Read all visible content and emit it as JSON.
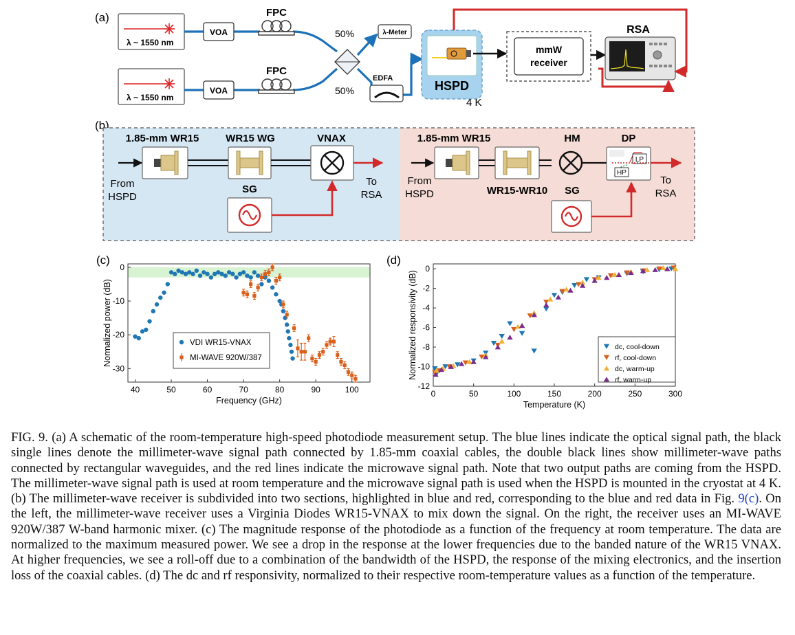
{
  "panel_a": {
    "label": "(a)",
    "laser_label": "λ ~ 1550 nm",
    "voa": "VOA",
    "fpc": "FPC",
    "split_pct": "50%",
    "lambda_meter": "λ-Meter",
    "edfa": "EDFA",
    "hspd": "HSPD",
    "temp": "4 K",
    "mmw_receiver_line1": "mmW",
    "mmw_receiver_line2": "receiver",
    "rsa": "RSA"
  },
  "panel_b": {
    "label": "(b)",
    "left": {
      "connector": "1.85-mm WR15",
      "waveguide": "WR15 WG",
      "mixer": "VNAX",
      "sg": "SG",
      "from1": "From",
      "from2": "HSPD",
      "to1": "To",
      "to2": "RSA"
    },
    "right": {
      "connector": "1.85-mm WR15",
      "adapter": "WR15-WR10",
      "mixer": "HM",
      "diplexer": "DP",
      "sg": "SG",
      "lp": "LP",
      "hp": "HP",
      "from1": "From",
      "from2": "HSPD",
      "to1": "To",
      "to2": "RSA"
    }
  },
  "chart_data": [
    {
      "panel": "(c)",
      "type": "scatter",
      "xlabel": "Frequency (GHz)",
      "ylabel": "Normalized power (dB)",
      "xlim": [
        38,
        105
      ],
      "ylim": [
        -34,
        1
      ],
      "xticks": [
        40,
        50,
        60,
        70,
        80,
        90,
        100
      ],
      "yticks": [
        0,
        -10,
        -20,
        -30
      ],
      "shaded_band": [
        -3,
        0
      ],
      "shaded_color": "#d8f3d2",
      "legend_position": "bottom-center",
      "series": [
        {
          "name": "VDI WR15-VNAX",
          "color": "#1f77b4",
          "marker": "circle",
          "x": [
            40,
            41,
            42,
            43,
            44,
            45,
            46,
            47,
            48,
            49,
            50,
            51,
            52,
            53,
            54,
            55,
            56,
            57,
            58,
            59,
            60,
            61,
            62,
            63,
            64,
            65,
            66,
            67,
            68,
            69,
            70,
            71,
            72,
            73,
            74,
            75,
            76,
            77,
            78,
            79,
            80,
            80.5,
            81,
            81.5,
            82,
            82.3,
            82.6,
            83,
            83.3,
            83.6
          ],
          "y": [
            -20.5,
            -21,
            -19,
            -18.5,
            -16,
            -13,
            -11,
            -9,
            -7.5,
            -5,
            -1.5,
            -2,
            -1,
            -1.5,
            -2,
            -1.5,
            -2,
            -1,
            -2.5,
            -1.5,
            -2,
            -3,
            -2,
            -1.5,
            -2,
            -2.5,
            -1.5,
            -2,
            -3,
            -2,
            -1.5,
            -2.5,
            -3,
            -1.5,
            -2.5,
            -5,
            -3,
            -4,
            -6,
            -8,
            -10,
            -11,
            -13,
            -15,
            -17,
            -19,
            -21,
            -23,
            -25,
            -27
          ]
        },
        {
          "name": "MI-WAVE 920W/387",
          "color": "#d95f1a",
          "marker": "square",
          "x": [
            70,
            71,
            72,
            73,
            74,
            75,
            76,
            77,
            78,
            79,
            80,
            81,
            82,
            84,
            85,
            86,
            87,
            88,
            89,
            90,
            91,
            92,
            93,
            94,
            95,
            96,
            97,
            98,
            99,
            100,
            101
          ],
          "y": [
            -7.5,
            -8,
            -5,
            -8.5,
            -6,
            -3,
            -2,
            -1.5,
            0,
            -4,
            -3,
            -11,
            -14,
            -18,
            -24,
            -25,
            -25,
            -21,
            -27,
            -28,
            -26,
            -25,
            -23,
            -22,
            -22,
            -26,
            -28,
            -29,
            -31,
            -32,
            -33
          ],
          "err": [
            1,
            1,
            1,
            1,
            1,
            1,
            1,
            1,
            1,
            1,
            1,
            1,
            1,
            1,
            2.5,
            2.5,
            2.5,
            1,
            1,
            1,
            1,
            1,
            1,
            1,
            1.5,
            1,
            1,
            1,
            1,
            1,
            1
          ]
        }
      ]
    },
    {
      "panel": "(d)",
      "type": "scatter",
      "xlabel": "Temperature (K)",
      "ylabel": "Normalized responsivity (dB)",
      "xlim": [
        0,
        300
      ],
      "ylim": [
        -12,
        0.5
      ],
      "xticks": [
        0,
        50,
        100,
        150,
        200,
        250,
        300
      ],
      "yticks": [
        0,
        -2,
        -4,
        -6,
        -8,
        -10,
        -12
      ],
      "legend_position": "bottom-right",
      "series": [
        {
          "name": "dc, cool-down",
          "color": "#1f77b4",
          "marker": "triangle-down",
          "x": [
            2,
            5,
            15,
            30,
            50,
            65,
            75,
            85,
            95,
            110,
            125,
            140,
            150,
            160,
            175,
            190,
            205,
            220,
            240,
            260,
            280,
            295
          ],
          "y": [
            -10.2,
            -10.6,
            -10.0,
            -9.8,
            -9.4,
            -8.6,
            -7.6,
            -6.9,
            -5.6,
            -6.6,
            -8.4,
            -4.1,
            -2.7,
            -2.4,
            -1.7,
            -1.1,
            -0.9,
            -0.7,
            -0.5,
            -0.3,
            -0.1,
            0.0
          ]
        },
        {
          "name": "rf, cool-down",
          "color": "#d95f1a",
          "marker": "triangle-down",
          "x": [
            2,
            8,
            20,
            40,
            60,
            80,
            100,
            120,
            140,
            160,
            180,
            200,
            220,
            240,
            260,
            280,
            298
          ],
          "y": [
            -10.6,
            -10.4,
            -10.0,
            -9.6,
            -9.0,
            -7.8,
            -6.2,
            -4.8,
            -3.4,
            -2.3,
            -1.6,
            -1.1,
            -0.7,
            -0.4,
            -0.2,
            0.0,
            0.1
          ]
        },
        {
          "name": "dc, warm-up",
          "color": "#f2b134",
          "marker": "triangle-up",
          "x": [
            4,
            12,
            25,
            45,
            65,
            85,
            105,
            125,
            145,
            165,
            185,
            205,
            225,
            245,
            265,
            285,
            300
          ],
          "y": [
            -10.4,
            -10.2,
            -9.9,
            -9.5,
            -8.8,
            -7.4,
            -5.9,
            -4.5,
            -3.1,
            -2.1,
            -1.4,
            -0.9,
            -0.6,
            -0.3,
            -0.1,
            0.1,
            0.0
          ]
        },
        {
          "name": "rf, warm-up",
          "color": "#7b2d8e",
          "marker": "triangle-up",
          "x": [
            3,
            10,
            22,
            35,
            50,
            65,
            80,
            95,
            110,
            125,
            140,
            155,
            170,
            185,
            200,
            215,
            230,
            245,
            260,
            275,
            290
          ],
          "y": [
            -10.8,
            -10.3,
            -10.0,
            -9.7,
            -9.5,
            -9.0,
            -8.0,
            -7.0,
            -5.8,
            -4.7,
            -3.7,
            -2.9,
            -2.2,
            -1.7,
            -1.2,
            -0.9,
            -0.6,
            -0.4,
            -0.2,
            -0.1,
            0.0
          ]
        }
      ]
    }
  ],
  "caption": {
    "fig_label": "FIG. 9.",
    "part1": " (a) A schematic of the room-temperature high-speed photodiode measurement setup. The blue lines indicate the optical signal path, the black single lines denote the millimeter-wave signal path connected by 1.85-mm coaxial cables, the double black lines show millimeter-wave paths connected by rectangular waveguides, and the red lines indicate the microwave signal path. Note that two output paths are coming from the HSPD. The millimeter-wave signal path is used at room temperature and the microwave signal path is used when the HSPD is mounted in the cryostat at 4 K. (b) The millimeter-wave receiver is subdivided into two sections, highlighted in blue and red, corresponding to the blue and red data in Fig. ",
    "link": "9(c)",
    "part2": ". On the left, the millimeter-wave receiver uses a Virginia Diodes WR15-VNAX to mix down the signal. On the right, the receiver uses an MI-WAVE 920W/387 W-band harmonic mixer. (c) The magnitude response of the photodiode as a function of the frequency at room temperature. The data are normalized to the maximum measured power. We see a drop in the response at the lower frequencies due to the banded nature of the WR15 VNAX. At higher frequencies, we see a roll-off due to a combination of the bandwidth of the HSPD, the response of the mixing electronics, and the insertion loss of the coaxial cables. (d) The dc and rf responsivity, normalized to their respective room-temperature values as a function of the temperature."
  }
}
